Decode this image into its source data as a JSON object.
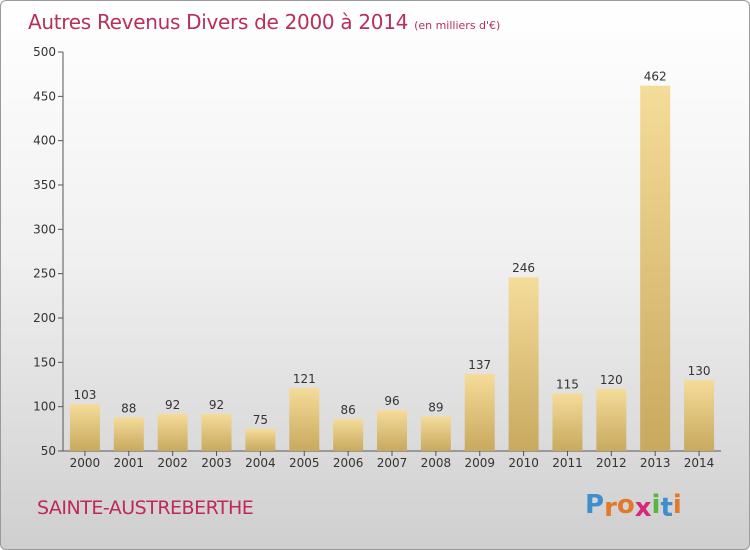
{
  "header": {
    "title": "Autres Revenus Divers de 2000 à 2014",
    "subtitle": "(en milliers d'€)"
  },
  "footer": {
    "place": "SAINTE-AUSTREBERTHE",
    "logo": [
      "P",
      "r",
      "o",
      "x",
      "i",
      "t",
      "i"
    ]
  },
  "colors": {
    "title": "#b8305a",
    "bar_light": "#f5dc9a",
    "bar_dark": "#c8a95e",
    "logo": [
      "#3f8fd0",
      "#e07a2a",
      "#e07a2a",
      "#d8287a",
      "#5bb53a",
      "#3f8fd0",
      "#e07a2a"
    ]
  },
  "chart_data": {
    "type": "bar",
    "categories": [
      "2000",
      "2001",
      "2002",
      "2003",
      "2004",
      "2005",
      "2006",
      "2007",
      "2008",
      "2009",
      "2010",
      "2011",
      "2012",
      "2013",
      "2014"
    ],
    "values": [
      103,
      88,
      92,
      92,
      75,
      121,
      86,
      96,
      89,
      137,
      246,
      115,
      120,
      462,
      130
    ],
    "title": "Autres Revenus Divers de 2000 à 2014",
    "xlabel": "",
    "ylabel": "",
    "ylim": [
      50,
      500
    ],
    "yticks": [
      50,
      100,
      150,
      200,
      250,
      300,
      350,
      400,
      450,
      500
    ],
    "grid": false,
    "data_labels": true
  }
}
